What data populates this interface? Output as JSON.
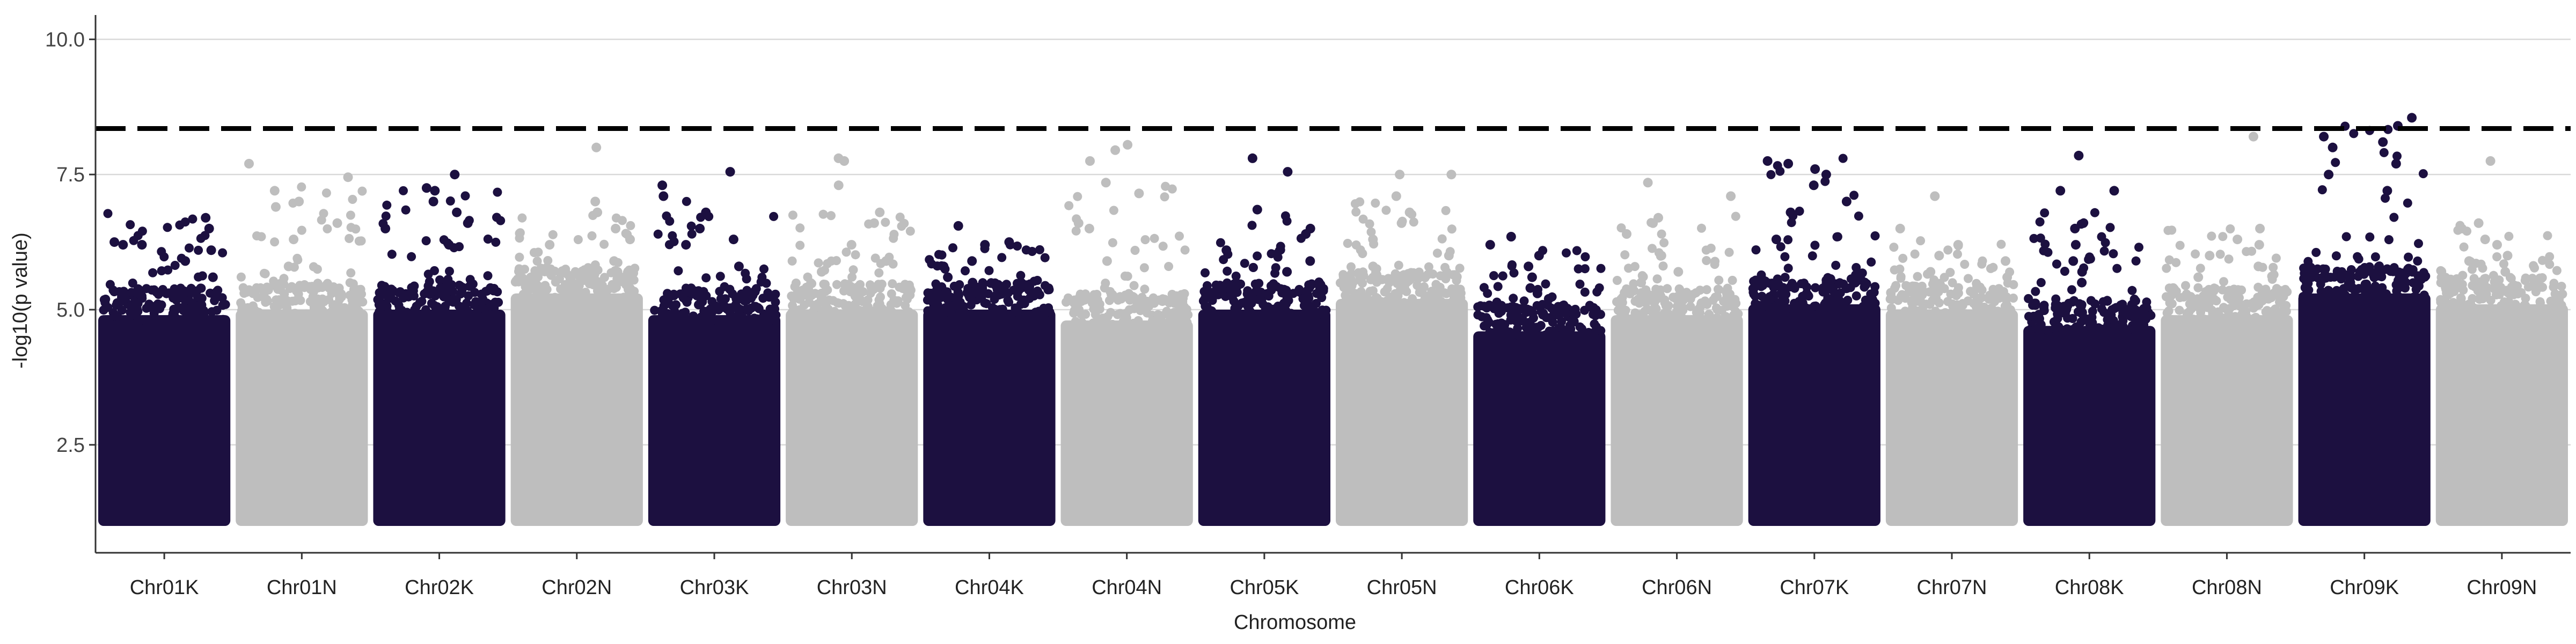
{
  "chart_data": {
    "type": "scatter",
    "subtype": "manhattan",
    "title": "",
    "xlabel": "Chromosome",
    "ylabel": "-log10(p value)",
    "ylim": [
      1.0,
      10.4
    ],
    "yticks": [
      2.5,
      5.0,
      7.5,
      10.0
    ],
    "grid": "horizontal major lines",
    "legend": "none",
    "threshold": 8.35,
    "colors": {
      "odd": "#1c1040",
      "even": "#bebebe",
      "threshold": "#000000",
      "grid": "#d9d9d9",
      "axis": "#333333"
    },
    "categories": [
      "Chr01K",
      "Chr01N",
      "Chr02K",
      "Chr02N",
      "Chr03K",
      "Chr03N",
      "Chr04K",
      "Chr04N",
      "Chr05K",
      "Chr05N",
      "Chr06K",
      "Chr06N",
      "Chr07K",
      "Chr07N",
      "Chr08K",
      "Chr08N",
      "Chr09K",
      "Chr09N"
    ],
    "series": [
      {
        "x": "Chr01K",
        "y_range": [
          1.0,
          4.9
        ],
        "top_points": [
          6.25,
          6.2,
          6.2,
          6.5,
          6.7,
          5.9,
          6.1,
          5.6
        ]
      },
      {
        "x": "Chr01N",
        "y_range": [
          1.0,
          5.0
        ],
        "top_points": [
          7.2,
          7.45,
          7.7,
          7.0,
          6.6,
          6.9,
          6.3,
          5.8
        ]
      },
      {
        "x": "Chr02K",
        "y_range": [
          1.0,
          5.0
        ],
        "top_points": [
          7.2,
          7.5,
          7.25,
          7.0,
          6.6,
          6.8,
          6.5,
          6.2
        ]
      },
      {
        "x": "Chr02N",
        "y_range": [
          1.0,
          5.3
        ],
        "top_points": [
          8.0,
          7.0,
          6.8,
          6.5,
          6.3,
          6.2,
          5.9,
          5.7
        ]
      },
      {
        "x": "Chr03K",
        "y_range": [
          1.0,
          4.9
        ],
        "top_points": [
          7.55,
          7.3,
          7.1,
          6.8,
          6.5,
          6.3,
          6.2,
          5.8
        ]
      },
      {
        "x": "Chr03N",
        "y_range": [
          1.0,
          5.0
        ],
        "top_points": [
          7.75,
          7.8,
          7.3,
          6.8,
          6.6,
          6.2,
          5.9,
          5.7
        ]
      },
      {
        "x": "Chr04K",
        "y_range": [
          1.0,
          5.0
        ],
        "top_points": [
          6.55,
          6.25,
          6.2,
          5.9,
          5.8,
          5.6,
          5.5,
          5.4
        ]
      },
      {
        "x": "Chr04N",
        "y_range": [
          1.0,
          4.8
        ],
        "top_points": [
          8.05,
          7.95,
          7.75,
          7.35,
          7.15,
          6.6,
          6.5,
          5.9
        ]
      },
      {
        "x": "Chr05K",
        "y_range": [
          1.0,
          5.0
        ],
        "top_points": [
          7.8,
          7.55,
          6.85,
          6.5,
          6.4,
          6.1,
          5.9,
          5.7
        ]
      },
      {
        "x": "Chr05N",
        "y_range": [
          1.0,
          5.2
        ],
        "top_points": [
          7.5,
          7.5,
          7.1,
          6.8,
          6.6,
          6.3,
          6.0,
          5.8
        ]
      },
      {
        "x": "Chr06K",
        "y_range": [
          1.0,
          4.6
        ],
        "top_points": [
          6.35,
          6.2,
          6.0,
          5.8,
          5.6,
          5.4,
          5.3,
          5.2
        ]
      },
      {
        "x": "Chr06N",
        "y_range": [
          1.0,
          4.9
        ],
        "top_points": [
          7.35,
          7.1,
          6.7,
          6.6,
          6.4,
          6.0,
          5.7,
          5.5
        ]
      },
      {
        "x": "Chr07K",
        "y_range": [
          1.0,
          5.1
        ],
        "top_points": [
          7.75,
          7.7,
          7.6,
          7.5,
          7.3,
          7.0,
          6.8,
          6.3
        ]
      },
      {
        "x": "Chr07N",
        "y_range": [
          1.0,
          5.0
        ],
        "top_points": [
          7.1,
          6.5,
          6.2,
          6.0,
          5.9,
          5.7,
          5.6,
          5.4
        ]
      },
      {
        "x": "Chr08K",
        "y_range": [
          1.0,
          4.7
        ],
        "top_points": [
          7.85,
          7.2,
          7.2,
          6.5,
          6.2,
          5.9,
          5.7,
          5.5
        ]
      },
      {
        "x": "Chr08N",
        "y_range": [
          1.0,
          4.9
        ],
        "top_points": [
          8.2,
          6.5,
          6.3,
          6.2,
          6.0,
          5.8,
          5.6,
          5.4
        ]
      },
      {
        "x": "Chr09K",
        "y_range": [
          1.0,
          5.3
        ],
        "top_points": [
          8.55,
          8.4,
          8.2,
          8.1,
          8.0,
          7.7,
          7.5,
          7.2
        ]
      },
      {
        "x": "Chr09N",
        "y_range": [
          1.0,
          5.1
        ],
        "top_points": [
          7.75,
          6.6,
          6.5,
          6.3,
          6.2,
          6.0,
          5.9,
          5.7
        ]
      }
    ]
  }
}
